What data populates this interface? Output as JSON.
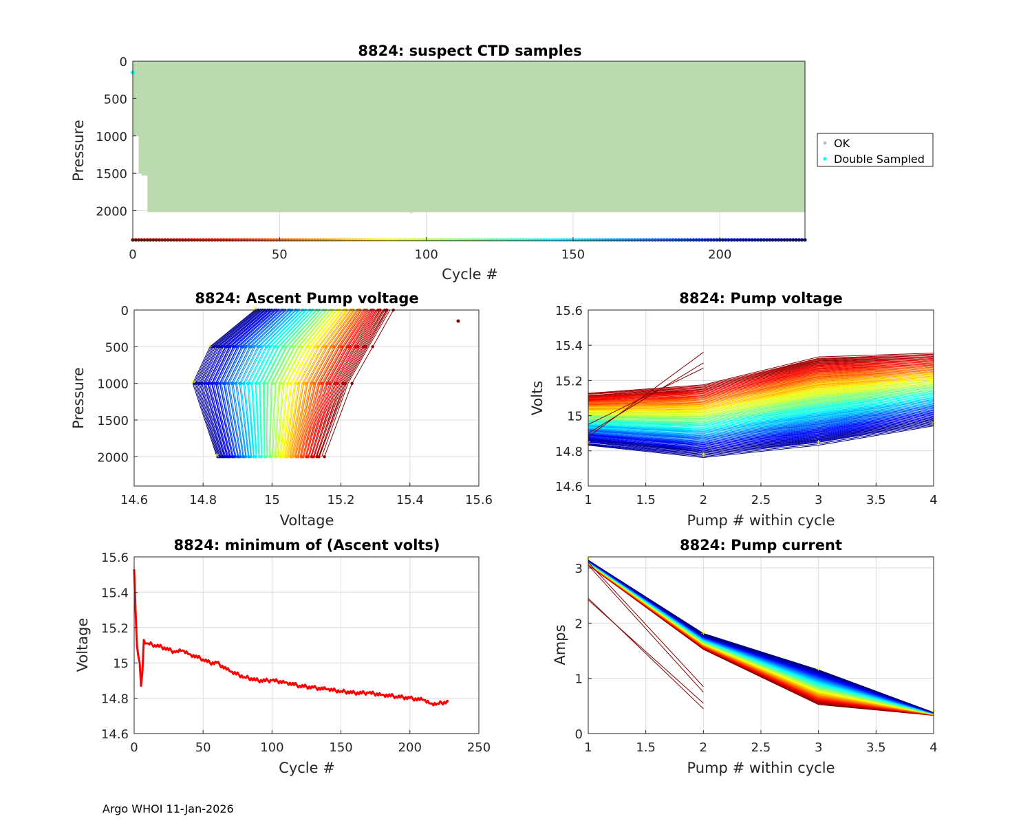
{
  "footer": "Argo WHOI 11-Jan-2026",
  "colors": {
    "ok": "#bcdab0",
    "ok_marker": "#c0c0c0",
    "double": "#00ffff",
    "marker_yellow": "#ffff00",
    "red": "#ff0000"
  },
  "chart_data": [
    {
      "id": "suspect",
      "type": "scatter",
      "title": "8824: suspect CTD samples",
      "xlabel": "Cycle #",
      "ylabel": "Pressure",
      "xlim": [
        0,
        229
      ],
      "ylim": [
        2400,
        0
      ],
      "xticks": [
        "0",
        "50",
        "100",
        "150",
        "200"
      ],
      "yticks": [
        "0",
        "500",
        "1000",
        "1500",
        "2000"
      ],
      "legend": [
        "OK",
        "Double Sampled"
      ],
      "legend_position": "outside-right",
      "ok_profile_extent": [
        [
          0,
          1000
        ],
        [
          2,
          1500
        ],
        [
          3,
          1530
        ],
        [
          5,
          2020
        ],
        [
          229,
          2020
        ]
      ],
      "double_sampled": [
        [
          0,
          150
        ]
      ],
      "cycle_marker_pressure": 2390
    },
    {
      "id": "ascent_voltage",
      "type": "line",
      "title": "8824: Ascent Pump voltage",
      "xlabel": "Voltage",
      "ylabel": "Pressure",
      "xlim": [
        14.6,
        15.6
      ],
      "ylim": [
        2400,
        0
      ],
      "xticks": [
        "14.6",
        "14.8",
        "15",
        "15.2",
        "15.4",
        "15.6"
      ],
      "yticks": [
        "0",
        "500",
        "1000",
        "1500",
        "2000"
      ],
      "pressure_levels": [
        0,
        500,
        1000,
        2000
      ],
      "first_cycle_volts": [
        15.34,
        15.28,
        15.22,
        15.14
      ],
      "last_cycle_volts": [
        14.95,
        14.82,
        14.77,
        14.84
      ],
      "outlier": [
        15.54,
        150
      ]
    },
    {
      "id": "pump_voltage",
      "type": "line",
      "title": "8824: Pump voltage",
      "xlabel": "Pump # within cycle",
      "ylabel": "Volts",
      "xlim": [
        1,
        4
      ],
      "ylim": [
        14.6,
        15.6
      ],
      "xticks": [
        "1",
        "1.5",
        "2",
        "2.5",
        "3",
        "3.5",
        "4"
      ],
      "yticks": [
        "14.6",
        "14.8",
        "15",
        "15.2",
        "15.4",
        "15.6"
      ],
      "x": [
        1,
        2,
        3,
        4
      ],
      "first_cycle": [
        15.12,
        15.17,
        15.33,
        15.35
      ],
      "last_cycle": [
        14.84,
        14.77,
        14.84,
        14.95
      ]
    },
    {
      "id": "min_volts",
      "type": "line",
      "title": "8824: minimum of (Ascent volts)",
      "xlabel": "Cycle #",
      "ylabel": "Voltage",
      "xlim": [
        0,
        250
      ],
      "ylim": [
        14.6,
        15.6
      ],
      "xticks": [
        "0",
        "50",
        "100",
        "150",
        "200",
        "250"
      ],
      "yticks": [
        "14.6",
        "14.8",
        "15",
        "15.2",
        "15.4",
        "15.6"
      ],
      "x": [
        0,
        1,
        2,
        3,
        4,
        5,
        6,
        7,
        8,
        10,
        15,
        20,
        30,
        35,
        40,
        50,
        55,
        60,
        70,
        80,
        90,
        100,
        110,
        120,
        130,
        140,
        150,
        160,
        170,
        180,
        190,
        200,
        210,
        215,
        220,
        228
      ],
      "y": [
        15.53,
        15.3,
        15.1,
        15.04,
        15.0,
        14.87,
        14.95,
        15.13,
        15.11,
        15.11,
        15.1,
        15.09,
        15.06,
        15.07,
        15.05,
        15.02,
        15.0,
        15.0,
        14.95,
        14.92,
        14.9,
        14.9,
        14.89,
        14.87,
        14.86,
        14.85,
        14.84,
        14.83,
        14.83,
        14.82,
        14.81,
        14.8,
        14.79,
        14.77,
        14.77,
        14.78
      ]
    },
    {
      "id": "pump_current",
      "type": "line",
      "title": "8824: Pump current",
      "xlabel": "Pump # within cycle",
      "ylabel": "Amps",
      "xlim": [
        1,
        4
      ],
      "ylim": [
        0,
        3.2
      ],
      "xticks": [
        "1",
        "1.5",
        "2",
        "2.5",
        "3",
        "3.5",
        "4"
      ],
      "yticks": [
        "0",
        "1",
        "2",
        "3"
      ],
      "x": [
        1,
        2,
        3,
        4
      ],
      "first_cycle": [
        3.05,
        1.55,
        0.55,
        0.33
      ],
      "last_cycle": [
        3.14,
        1.8,
        1.15,
        0.38
      ],
      "anomalous": [
        [
          2.45,
          0.45
        ],
        [
          2.42,
          0.55
        ],
        [
          3.05,
          0.75
        ],
        [
          3.1,
          0.85
        ]
      ]
    }
  ]
}
